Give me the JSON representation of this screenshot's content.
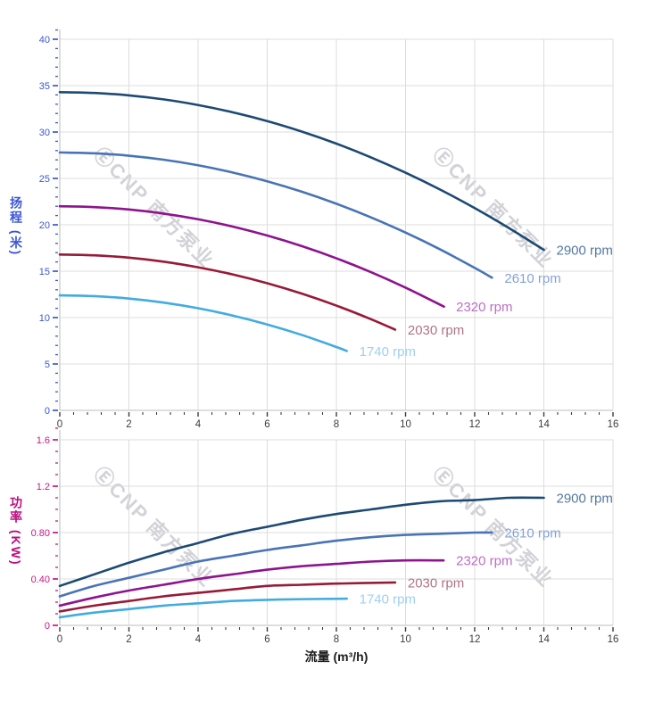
{
  "watermark": {
    "text": "ⒺCNP 南方泵业"
  },
  "x_axis_title": "流量 (m³/h)",
  "chart_data": [
    {
      "id": "head",
      "type": "line",
      "title": "",
      "xlabel": "",
      "ylabel": "扬程 (米)",
      "axis_color": "#3c57d5",
      "x_tick_color": "#3c3c3c",
      "grid": true,
      "legend_position": "curve-end-labels",
      "x_range": [
        0,
        16
      ],
      "y_range": [
        0,
        40
      ],
      "x_major": 2,
      "x_minor": 0.4,
      "y_major": 5,
      "y_minor": 1,
      "x_tick_labels": [
        "0",
        "2",
        "4",
        "6",
        "8",
        "10",
        "12",
        "14",
        "16"
      ],
      "y_tick_labels": [
        "0",
        "5",
        "10",
        "15",
        "20",
        "25",
        "30",
        "35",
        "40"
      ],
      "series": [
        {
          "name": "2900 rpm",
          "color": "#1c4a74",
          "label_color": "#527aa2",
          "points": [
            [
              0,
              34.3
            ],
            [
              1,
              34.21
            ],
            [
              2,
              33.95
            ],
            [
              3,
              33.52
            ],
            [
              4,
              32.91
            ],
            [
              5,
              32.13
            ],
            [
              6,
              31.18
            ],
            [
              7,
              30.05
            ],
            [
              8,
              28.75
            ],
            [
              9,
              27.27
            ],
            [
              10,
              25.62
            ],
            [
              11,
              23.8
            ],
            [
              12,
              21.8
            ],
            [
              13,
              19.63
            ],
            [
              14,
              17.3
            ]
          ]
        },
        {
          "name": "2610 rpm",
          "color": "#4874b6",
          "label_color": "#84a2d8",
          "points": [
            [
              0,
              27.8
            ],
            [
              1,
              27.71
            ],
            [
              2,
              27.45
            ],
            [
              3,
              27.02
            ],
            [
              4,
              26.42
            ],
            [
              5,
              25.64
            ],
            [
              6,
              24.69
            ],
            [
              7,
              23.57
            ],
            [
              8,
              22.27
            ],
            [
              9,
              20.8
            ],
            [
              10,
              19.16
            ],
            [
              11,
              17.35
            ],
            [
              12,
              15.36
            ],
            [
              12.5,
              14.3
            ]
          ]
        },
        {
          "name": "2320 rpm",
          "color": "#8e138e",
          "label_color": "#bd6ec4",
          "points": [
            [
              0,
              22.0
            ],
            [
              1,
              21.91
            ],
            [
              2,
              21.65
            ],
            [
              3,
              21.21
            ],
            [
              4,
              20.6
            ],
            [
              5,
              19.81
            ],
            [
              6,
              18.84
            ],
            [
              7,
              17.7
            ],
            [
              8,
              16.39
            ],
            [
              9,
              14.9
            ],
            [
              10,
              13.23
            ],
            [
              11,
              11.39
            ],
            [
              11.1,
              11.2
            ]
          ]
        },
        {
          "name": "2030 rpm",
          "color": "#971a38",
          "label_color": "#b17384",
          "points": [
            [
              0,
              16.8
            ],
            [
              1,
              16.71
            ],
            [
              2,
              16.46
            ],
            [
              3,
              16.03
            ],
            [
              4,
              15.42
            ],
            [
              5,
              14.65
            ],
            [
              6,
              13.7
            ],
            [
              7,
              12.58
            ],
            [
              8,
              11.29
            ],
            [
              9,
              9.83
            ],
            [
              9.7,
              8.7
            ]
          ]
        },
        {
          "name": "1740 rpm",
          "color": "#42abdf",
          "label_color": "#9fd0f0",
          "points": [
            [
              0,
              12.4
            ],
            [
              1,
              12.31
            ],
            [
              2,
              12.05
            ],
            [
              3,
              11.62
            ],
            [
              4,
              11.01
            ],
            [
              5,
              10.22
            ],
            [
              6,
              9.26
            ],
            [
              7,
              8.13
            ],
            [
              8,
              6.83
            ],
            [
              8.3,
              6.4
            ]
          ]
        }
      ]
    },
    {
      "id": "power",
      "type": "line",
      "title": "",
      "xlabel": "流量 (m³/h)",
      "ylabel": "功率 (KW)",
      "axis_color": "#cc1488",
      "x_tick_color": "#3c3c3c",
      "grid": true,
      "legend_position": "curve-end-labels",
      "x_range": [
        0,
        16
      ],
      "y_range": [
        0,
        1.6
      ],
      "x_major": 2,
      "x_minor": 0.4,
      "y_major": 0.4,
      "y_minor": 0.1,
      "x_tick_labels": [
        "0",
        "2",
        "4",
        "6",
        "8",
        "10",
        "12",
        "14",
        "16"
      ],
      "y_tick_labels": [
        "0",
        "0.40",
        "0.80",
        "1.2",
        "1.6"
      ],
      "series": [
        {
          "name": "2900 rpm",
          "color": "#1c4a74",
          "label_color": "#527aa2",
          "points": [
            [
              0,
              0.34
            ],
            [
              1,
              0.44
            ],
            [
              2,
              0.54
            ],
            [
              3,
              0.63
            ],
            [
              4,
              0.71
            ],
            [
              5,
              0.79
            ],
            [
              6,
              0.85
            ],
            [
              7,
              0.91
            ],
            [
              8,
              0.96
            ],
            [
              9,
              1.0
            ],
            [
              10,
              1.04
            ],
            [
              11,
              1.07
            ],
            [
              12,
              1.08
            ],
            [
              13,
              1.1
            ],
            [
              14,
              1.1
            ]
          ]
        },
        {
          "name": "2610 rpm",
          "color": "#4874b6",
          "label_color": "#84a2d8",
          "points": [
            [
              0,
              0.25
            ],
            [
              1,
              0.34
            ],
            [
              2,
              0.41
            ],
            [
              3,
              0.48
            ],
            [
              4,
              0.55
            ],
            [
              5,
              0.6
            ],
            [
              6,
              0.65
            ],
            [
              7,
              0.69
            ],
            [
              8,
              0.73
            ],
            [
              9,
              0.76
            ],
            [
              10,
              0.78
            ],
            [
              11,
              0.79
            ],
            [
              12,
              0.8
            ],
            [
              12.5,
              0.8
            ]
          ]
        },
        {
          "name": "2320 rpm",
          "color": "#8e138e",
          "label_color": "#bd6ec4",
          "points": [
            [
              0,
              0.17
            ],
            [
              1,
              0.24
            ],
            [
              2,
              0.3
            ],
            [
              3,
              0.35
            ],
            [
              4,
              0.4
            ],
            [
              5,
              0.44
            ],
            [
              6,
              0.48
            ],
            [
              7,
              0.51
            ],
            [
              8,
              0.53
            ],
            [
              9,
              0.55
            ],
            [
              10,
              0.56
            ],
            [
              11.1,
              0.56
            ]
          ]
        },
        {
          "name": "2030 rpm",
          "color": "#971a38",
          "label_color": "#b17384",
          "points": [
            [
              0,
              0.12
            ],
            [
              1,
              0.17
            ],
            [
              2,
              0.21
            ],
            [
              3,
              0.25
            ],
            [
              4,
              0.28
            ],
            [
              5,
              0.31
            ],
            [
              6,
              0.34
            ],
            [
              7,
              0.35
            ],
            [
              8,
              0.36
            ],
            [
              9.7,
              0.37
            ]
          ]
        },
        {
          "name": "1740 rpm",
          "color": "#42abdf",
          "label_color": "#9fd0f0",
          "points": [
            [
              0,
              0.07
            ],
            [
              1,
              0.11
            ],
            [
              2,
              0.14
            ],
            [
              3,
              0.17
            ],
            [
              4,
              0.19
            ],
            [
              5,
              0.21
            ],
            [
              6,
              0.22
            ],
            [
              7,
              0.226
            ],
            [
              8.3,
              0.23
            ]
          ]
        }
      ]
    }
  ]
}
